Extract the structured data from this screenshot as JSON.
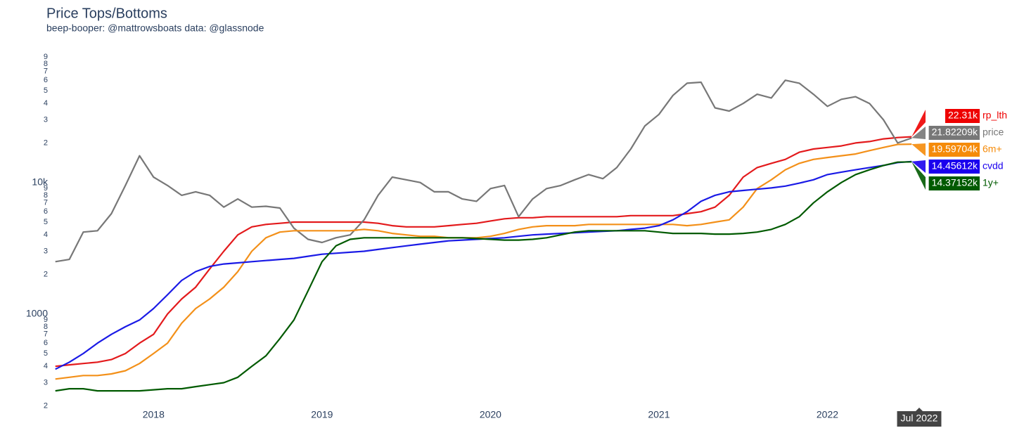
{
  "chart_data": {
    "type": "line",
    "title": "Price Tops/Bottoms",
    "subtitle": "beep-booper: @mattrowsboats data: @glassnode",
    "hover_label": "Jul 2022",
    "log_y": true,
    "grid": false,
    "xlim": [
      2017.41,
      2022.57
    ],
    "xticks": [
      2018,
      2019,
      2020,
      2021,
      2022
    ],
    "ylim": [
      180,
      110000
    ],
    "yticks": [
      {
        "value": 200,
        "label": "2"
      },
      {
        "value": 300,
        "label": "3"
      },
      {
        "value": 400,
        "label": "4"
      },
      {
        "value": 500,
        "label": "5"
      },
      {
        "value": 600,
        "label": "6"
      },
      {
        "value": 700,
        "label": "7"
      },
      {
        "value": 800,
        "label": "8"
      },
      {
        "value": 900,
        "label": "9"
      },
      1000,
      {
        "value": 2000,
        "label": "2"
      },
      {
        "value": 3000,
        "label": "3"
      },
      {
        "value": 4000,
        "label": "4"
      },
      {
        "value": 5000,
        "label": "5"
      },
      {
        "value": 6000,
        "label": "6"
      },
      {
        "value": 7000,
        "label": "7"
      },
      {
        "value": 8000,
        "label": "8"
      },
      {
        "value": 9000,
        "label": "9"
      },
      {
        "value": 10000,
        "label": "10k"
      },
      {
        "value": 20000,
        "label": "2"
      },
      {
        "value": 30000,
        "label": "3"
      },
      {
        "value": 40000,
        "label": "4"
      },
      {
        "value": 50000,
        "label": "5"
      },
      {
        "value": 60000,
        "label": "6"
      },
      {
        "value": 70000,
        "label": "7"
      },
      {
        "value": 80000,
        "label": "8"
      },
      {
        "value": 90000,
        "label": "9"
      }
    ],
    "x": [
      2017.417,
      2017.5,
      2017.583,
      2017.667,
      2017.75,
      2017.833,
      2017.917,
      2018,
      2018.083,
      2018.167,
      2018.25,
      2018.333,
      2018.417,
      2018.5,
      2018.583,
      2018.667,
      2018.75,
      2018.833,
      2018.917,
      2019,
      2019.083,
      2019.167,
      2019.25,
      2019.333,
      2019.417,
      2019.5,
      2019.583,
      2019.667,
      2019.75,
      2019.833,
      2019.917,
      2020,
      2020.083,
      2020.167,
      2020.25,
      2020.333,
      2020.417,
      2020.5,
      2020.583,
      2020.667,
      2020.75,
      2020.833,
      2020.917,
      2021,
      2021.083,
      2021.167,
      2021.25,
      2021.333,
      2021.417,
      2021.5,
      2021.583,
      2021.667,
      2021.75,
      2021.833,
      2021.917,
      2022,
      2022.083,
      2022.167,
      2022.25,
      2022.333,
      2022.417,
      2022.5
    ],
    "series": [
      {
        "name": "rp_lth",
        "color": "#e31a1c",
        "label_color": "#ee0000",
        "values": [
          400,
          410,
          420,
          430,
          450,
          500,
          600,
          700,
          1000,
          1300,
          1600,
          2200,
          3000,
          4000,
          4600,
          4800,
          4900,
          5000,
          5000,
          5000,
          5000,
          5000,
          5000,
          4900,
          4700,
          4600,
          4600,
          4600,
          4700,
          4800,
          4900,
          5100,
          5300,
          5400,
          5400,
          5500,
          5500,
          5500,
          5500,
          5500,
          5500,
          5600,
          5600,
          5600,
          5600,
          5800,
          6000,
          6500,
          8000,
          11000,
          13000,
          14000,
          15000,
          17000,
          18000,
          18500,
          19000,
          20000,
          20500,
          21500,
          22000,
          22310
        ],
        "value_labels": {
          "61": "22.31k"
        }
      },
      {
        "name": "price",
        "color": "#777777",
        "label_color": "#777777",
        "values": [
          2500,
          2600,
          4200,
          4300,
          5800,
          9500,
          16000,
          11000,
          9500,
          8000,
          8500,
          8000,
          6500,
          7500,
          6500,
          6600,
          6400,
          4500,
          3700,
          3500,
          3800,
          4000,
          5200,
          8000,
          11000,
          10500,
          10000,
          8500,
          8500,
          7500,
          7200,
          9000,
          9500,
          5500,
          7500,
          9000,
          9500,
          10500,
          11500,
          10700,
          13000,
          18000,
          27000,
          33000,
          46000,
          57000,
          58000,
          37000,
          35000,
          40000,
          47000,
          44000,
          60000,
          57000,
          47000,
          38000,
          43000,
          45000,
          40000,
          30000,
          20000,
          21822.09
        ],
        "value_labels": {
          "61": "21.82209k"
        }
      },
      {
        "name": "6m+",
        "color": "#f39019",
        "label_color": "#f58b0a",
        "values": [
          320,
          330,
          340,
          340,
          350,
          370,
          420,
          500,
          600,
          850,
          1100,
          1300,
          1600,
          2100,
          3000,
          3800,
          4200,
          4300,
          4300,
          4300,
          4300,
          4300,
          4400,
          4300,
          4100,
          4000,
          3900,
          3900,
          3800,
          3800,
          3800,
          3900,
          4100,
          4400,
          4600,
          4700,
          4700,
          4700,
          4800,
          4800,
          4800,
          4800,
          4800,
          4800,
          4800,
          4700,
          4800,
          5000,
          5200,
          6500,
          9000,
          10500,
          12500,
          14000,
          15000,
          15500,
          16000,
          16500,
          17500,
          18500,
          19500,
          19597.04
        ],
        "value_labels": {
          "61": "19.59704k"
        }
      },
      {
        "name": "cvdd",
        "color": "#1a1ae6",
        "label_color": "#1a00ee",
        "values": [
          380,
          430,
          500,
          600,
          700,
          800,
          900,
          1100,
          1400,
          1800,
          2100,
          2300,
          2400,
          2450,
          2500,
          2550,
          2600,
          2650,
          2750,
          2850,
          2900,
          2950,
          3000,
          3100,
          3200,
          3300,
          3400,
          3500,
          3600,
          3650,
          3700,
          3750,
          3800,
          3900,
          4000,
          4050,
          4100,
          4150,
          4200,
          4250,
          4300,
          4400,
          4500,
          4700,
          5200,
          6000,
          7200,
          8000,
          8500,
          8700,
          8900,
          9100,
          9400,
          9900,
          10500,
          11500,
          12000,
          12500,
          13000,
          13500,
          14200,
          14456.12
        ],
        "value_labels": {
          "61": "14.45612k"
        }
      },
      {
        "name": "1y+",
        "color": "#005a00",
        "label_color": "#005a00",
        "values": [
          260,
          270,
          270,
          260,
          260,
          260,
          260,
          265,
          270,
          270,
          280,
          290,
          300,
          330,
          400,
          480,
          650,
          900,
          1500,
          2500,
          3300,
          3700,
          3800,
          3800,
          3800,
          3800,
          3800,
          3800,
          3800,
          3800,
          3750,
          3700,
          3650,
          3650,
          3700,
          3800,
          4000,
          4200,
          4300,
          4300,
          4300,
          4300,
          4300,
          4200,
          4100,
          4100,
          4100,
          4050,
          4050,
          4100,
          4200,
          4400,
          4800,
          5500,
          7000,
          8500,
          10000,
          11500,
          12500,
          13500,
          14300,
          14371.52
        ],
        "value_labels": {
          "61": "14.37152k"
        }
      }
    ]
  }
}
